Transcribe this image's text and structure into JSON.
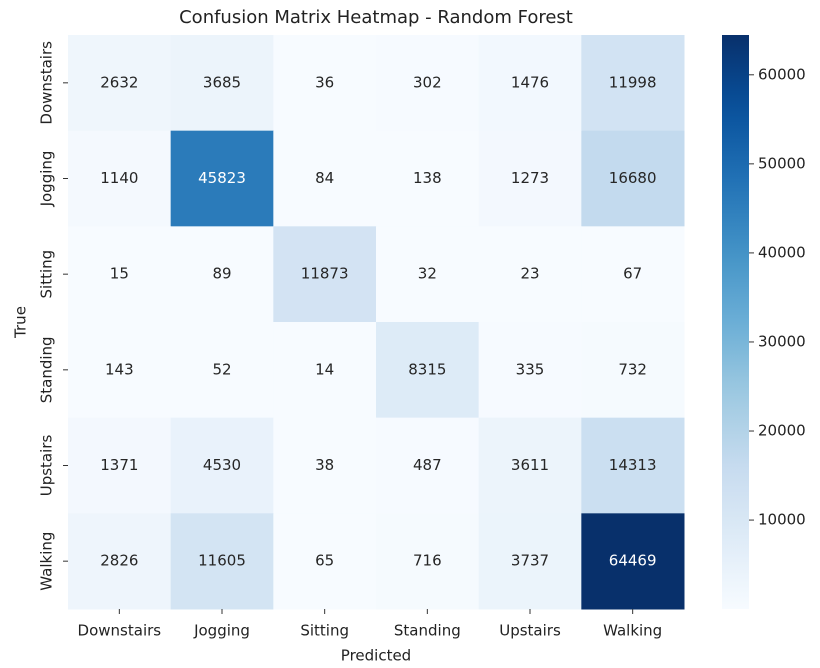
{
  "chart_data": {
    "type": "heatmap",
    "title": "Confusion Matrix Heatmap - Random Forest",
    "xlabel": "Predicted",
    "ylabel": "True",
    "x_categories": [
      "Downstairs",
      "Jogging",
      "Sitting",
      "Standing",
      "Upstairs",
      "Walking"
    ],
    "y_categories": [
      "Downstairs",
      "Jogging",
      "Sitting",
      "Standing",
      "Upstairs",
      "Walking"
    ],
    "values": [
      [
        2632,
        3685,
        36,
        302,
        1476,
        11998
      ],
      [
        1140,
        45823,
        84,
        138,
        1273,
        16680
      ],
      [
        15,
        89,
        11873,
        32,
        23,
        67
      ],
      [
        143,
        52,
        14,
        8315,
        335,
        732
      ],
      [
        1371,
        4530,
        38,
        487,
        3611,
        14313
      ],
      [
        2826,
        11605,
        65,
        716,
        3737,
        64469
      ]
    ],
    "colormap": "Blues",
    "clim": [
      14,
      64469
    ],
    "cticks": [
      10000,
      20000,
      30000,
      40000,
      50000,
      60000
    ]
  }
}
